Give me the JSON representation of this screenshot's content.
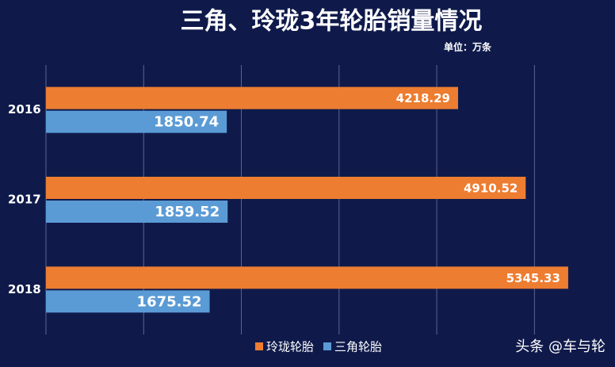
{
  "chart_data": {
    "type": "hbar",
    "title": "三角、玲珑3年轮胎销量情况",
    "subtitle": "单位：万条",
    "categories": [
      "2016",
      "2017",
      "2018"
    ],
    "series": [
      {
        "name": "玲珑轮胎",
        "color": "#ed7d31",
        "values": [
          4218.29,
          4910.52,
          5345.33
        ]
      },
      {
        "name": "三角轮胎",
        "color": "#5b9bd5",
        "values": [
          1850.74,
          1859.52,
          1675.52
        ]
      }
    ],
    "xlim": [
      0,
      5500
    ],
    "xticks": [
      0,
      1000,
      2000,
      3000,
      4000,
      5000
    ],
    "grid": true,
    "legend": "bottom",
    "watermark": "头条 @车与轮"
  }
}
